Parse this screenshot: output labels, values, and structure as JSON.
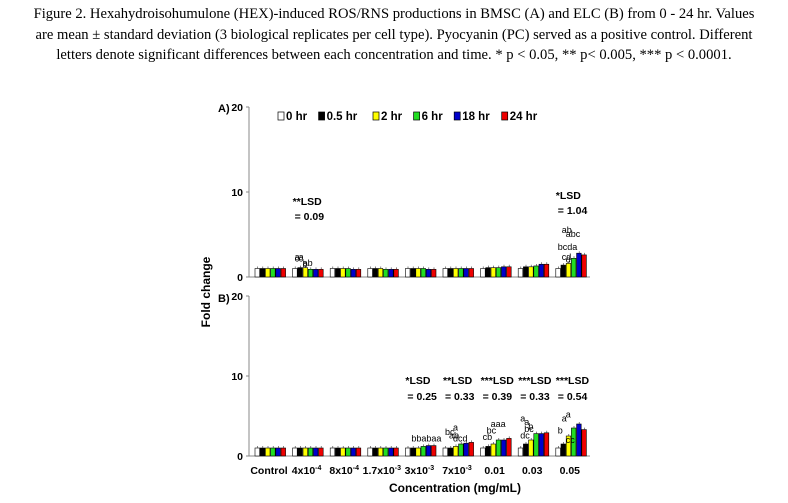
{
  "caption": {
    "line1": "Figure 2. Hexahydroisohumulone (HEX)-induced ROS/RNS productions in BMSC (A) and ELC (B) from 0 - 24 hr. Values",
    "line2": "are mean ± standard deviation (3 biological replicates per cell type). Pyocyanin (PC) served as a positive control. Different",
    "line3": "letters denote significant differences between each concentration and time. * p < 0.05, ** p< 0.005, *** p < 0.0001."
  },
  "colors": {
    "0 hr": "#ffffff",
    "0.5 hr": "#000000",
    "2 hr": "#ffff00",
    "6 hr": "#22dd22",
    "18 hr": "#0000cc",
    "24 hr": "#ee0000"
  },
  "chart_data": [
    {
      "type": "bar",
      "panel_label": "A)",
      "ylabel": "Fold change",
      "ylim": [
        0,
        20
      ],
      "yticks": [
        "0",
        "10",
        "20"
      ],
      "categories": [
        "Control",
        "4x10-4",
        "8x10-4",
        "1.7x10-3",
        "3x10-3",
        "7x10-3",
        "0.01",
        "0.03",
        "0.05"
      ],
      "series": [
        {
          "name": "0 hr",
          "values": [
            1.0,
            1.0,
            1.0,
            1.0,
            1.0,
            1.0,
            1.0,
            1.0,
            1.0
          ]
        },
        {
          "name": "0.5 hr",
          "values": [
            1.0,
            1.1,
            1.0,
            1.0,
            1.0,
            1.0,
            1.1,
            1.2,
            1.4
          ]
        },
        {
          "name": "2 hr",
          "values": [
            1.0,
            1.1,
            1.0,
            1.0,
            1.0,
            1.0,
            1.1,
            1.2,
            1.6
          ]
        },
        {
          "name": "6 hr",
          "values": [
            1.0,
            0.9,
            1.0,
            0.9,
            1.0,
            1.0,
            1.1,
            1.3,
            2.2
          ]
        },
        {
          "name": "18 hr",
          "values": [
            1.0,
            0.9,
            0.9,
            0.9,
            0.9,
            1.0,
            1.2,
            1.5,
            2.8
          ]
        },
        {
          "name": "24 hr",
          "values": [
            1.0,
            0.9,
            0.9,
            0.9,
            0.9,
            1.0,
            1.2,
            1.5,
            2.6
          ]
        }
      ],
      "annotations": [
        {
          "text": "**LSD",
          "category": 1,
          "y": 8.5
        },
        {
          "text": "= 0.09",
          "category": 1,
          "y": 6.7
        },
        {
          "text": "ab",
          "category": 1,
          "y": 1.3
        },
        {
          "text": "a",
          "category": 1,
          "y": 2.0
        },
        {
          "text": "a",
          "category": 1,
          "y": 2.0
        },
        {
          "text": "b",
          "category": 1,
          "y": 1.2
        },
        {
          "text": "c",
          "category": 1,
          "y": 1.8
        },
        {
          "text": "c",
          "category": 1,
          "y": 1.8
        },
        {
          "text": "*LSD",
          "category": 8,
          "y": 9.2
        },
        {
          "text": "= 1.04",
          "category": 8,
          "y": 7.4
        },
        {
          "text": "ab",
          "category": 8,
          "y": 5.2
        },
        {
          "text": "abc",
          "category": 8,
          "y": 4.7
        },
        {
          "text": "bcda",
          "category": 8,
          "y": 3.2
        },
        {
          "text": "cd",
          "category": 8,
          "y": 2.0
        },
        {
          "text": "d",
          "category": 8,
          "y": 1.7
        }
      ]
    },
    {
      "type": "bar",
      "panel_label": "B)",
      "ylabel": "Fold change",
      "xlabel": "Concentration (mg/mL)",
      "ylim": [
        0,
        20
      ],
      "yticks": [
        "0",
        "10",
        "20"
      ],
      "categories": [
        "Control",
        "4x10-4",
        "8x10-4",
        "1.7x10-3",
        "3x10-3",
        "7x10-3",
        "0.01",
        "0.03",
        "0.05"
      ],
      "series": [
        {
          "name": "0 hr",
          "values": [
            1.0,
            1.0,
            1.0,
            1.0,
            1.0,
            1.0,
            1.0,
            1.0,
            1.0
          ]
        },
        {
          "name": "0.5 hr",
          "values": [
            1.0,
            1.0,
            1.0,
            1.0,
            1.0,
            1.0,
            1.2,
            1.5,
            1.5
          ]
        },
        {
          "name": "2 hr",
          "values": [
            1.0,
            1.0,
            1.0,
            1.0,
            1.0,
            1.2,
            1.5,
            2.0,
            2.5
          ]
        },
        {
          "name": "6 hr",
          "values": [
            1.0,
            1.0,
            1.0,
            1.0,
            1.2,
            1.5,
            2.0,
            2.8,
            3.5
          ]
        },
        {
          "name": "18 hr",
          "values": [
            1.0,
            1.0,
            1.0,
            1.0,
            1.3,
            1.6,
            2.0,
            2.8,
            4.0
          ]
        },
        {
          "name": "24 hr",
          "values": [
            1.0,
            1.0,
            1.0,
            1.0,
            1.3,
            1.7,
            2.2,
            2.9,
            3.3
          ]
        }
      ],
      "annotations": [
        {
          "text": "*LSD",
          "category": 4,
          "y": 9.0
        },
        {
          "text": "= 0.25",
          "category": 4,
          "y": 7.0
        },
        {
          "text": "**LSD",
          "category": 5,
          "y": 9.0
        },
        {
          "text": "= 0.33",
          "category": 5,
          "y": 7.0
        },
        {
          "text": "***LSD",
          "category": 6,
          "y": 9.0
        },
        {
          "text": "= 0.39",
          "category": 6,
          "y": 7.0
        },
        {
          "text": "***LSD",
          "category": 7,
          "y": 9.0
        },
        {
          "text": "= 0.33",
          "category": 7,
          "y": 7.0
        },
        {
          "text": "***LSD",
          "category": 8,
          "y": 9.0
        },
        {
          "text": "= 0.54",
          "category": 8,
          "y": 7.0
        },
        {
          "text": "bbabaa",
          "category": 4,
          "y": 1.8
        },
        {
          "text": "dcd",
          "category": 5,
          "y": 1.8
        },
        {
          "text": "bc",
          "category": 5,
          "y": 2.6
        },
        {
          "text": "ab",
          "category": 5,
          "y": 2.2
        },
        {
          "text": "a",
          "category": 5,
          "y": 3.2
        },
        {
          "text": "cb",
          "category": 6,
          "y": 2.0
        },
        {
          "text": "bc",
          "category": 6,
          "y": 2.8
        },
        {
          "text": "aaa",
          "category": 6,
          "y": 3.6
        },
        {
          "text": "dc",
          "category": 7,
          "y": 2.2
        },
        {
          "text": "bc",
          "category": 7,
          "y": 3.0
        },
        {
          "text": "b",
          "category": 7,
          "y": 3.3
        },
        {
          "text": "a",
          "category": 7,
          "y": 4.3
        },
        {
          "text": "a",
          "category": 7,
          "y": 3.9
        },
        {
          "text": "cc",
          "category": 8,
          "y": 1.6
        },
        {
          "text": "b",
          "category": 8,
          "y": 2.8
        },
        {
          "text": "a",
          "category": 8,
          "y": 4.3
        },
        {
          "text": "a",
          "category": 8,
          "y": 4.8
        }
      ]
    }
  ]
}
